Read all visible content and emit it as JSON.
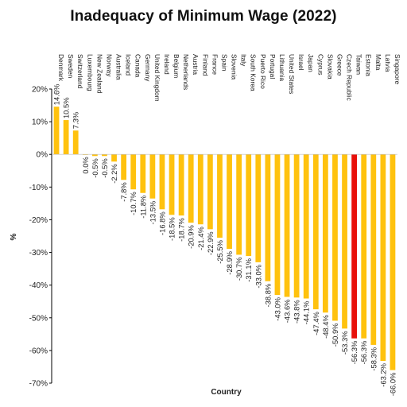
{
  "chart_data": {
    "type": "bar",
    "title": "Inadequacy of Minimum Wage (2022)",
    "xlabel": "Country",
    "ylabel": "%",
    "ylim": [
      -70,
      20
    ],
    "yticks": [
      "20%",
      "10%",
      "0%",
      "-10%",
      "-20%",
      "-30%",
      "-40%",
      "-50%",
      "-60%",
      "-70%"
    ],
    "grid": false,
    "categories": [
      "Denmark",
      "Sweden",
      "Switzerland",
      "Luxembourg",
      "New Zealand",
      "Norway",
      "Australia",
      "Iceland",
      "Canada",
      "Germany",
      "United Kingdom",
      "Ireland",
      "Belgium",
      "Netherlands",
      "Austria",
      "Finland",
      "France",
      "Spain",
      "Slovenia",
      "Italy",
      "South Korea",
      "Puerto Rico",
      "Portugal",
      "Lithuania",
      "United States",
      "Israel",
      "Japan",
      "Cyprus",
      "Slovakia",
      "Greece",
      "Czech Republic",
      "Taiwan",
      "Estonia",
      "Malta",
      "Latvia",
      "Singapore"
    ],
    "values": [
      14.6,
      10.5,
      7.3,
      0.0,
      -0.5,
      -0.5,
      -2.2,
      -7.8,
      -10.7,
      -11.8,
      -13.5,
      -16.8,
      -18.5,
      -18.7,
      -20.9,
      -21.4,
      -22.9,
      -25.5,
      -28.9,
      -30.7,
      -31.1,
      -33.0,
      -38.8,
      -43.0,
      -43.6,
      -43.8,
      -44.1,
      -47.4,
      -48.4,
      -50.9,
      -53.3,
      -56.3,
      -56.3,
      -58.3,
      -63.2,
      -66.0
    ],
    "data_labels": [
      "14.6%",
      "10.5%",
      "7.3%",
      "0.0%",
      "-0.5%",
      "-0.5%",
      "-2.2%",
      "-7.8%",
      "-10.7%",
      "-11.8%",
      "-13.5%",
      "-16.8%",
      "-18.5%",
      "-18.7%",
      "-20.9%",
      "-21.4%",
      "-22.9%",
      "-25.5%",
      "-28.9%",
      "-30.7%",
      "-31.1%",
      "-33.0%",
      "-38.8%",
      "-43.0%",
      "-43.6%",
      "-43.8%",
      "-44.1%",
      "-47.4%",
      "-48.4%",
      "-50.9%",
      "-53.3%",
      "-56.3%",
      "-56.3%",
      "-58.3%",
      "-63.2%",
      "-66.0%"
    ],
    "highlight_category": "Taiwan",
    "colors": {
      "bar": "#FFC20E",
      "highlight": "#E8100A"
    }
  }
}
